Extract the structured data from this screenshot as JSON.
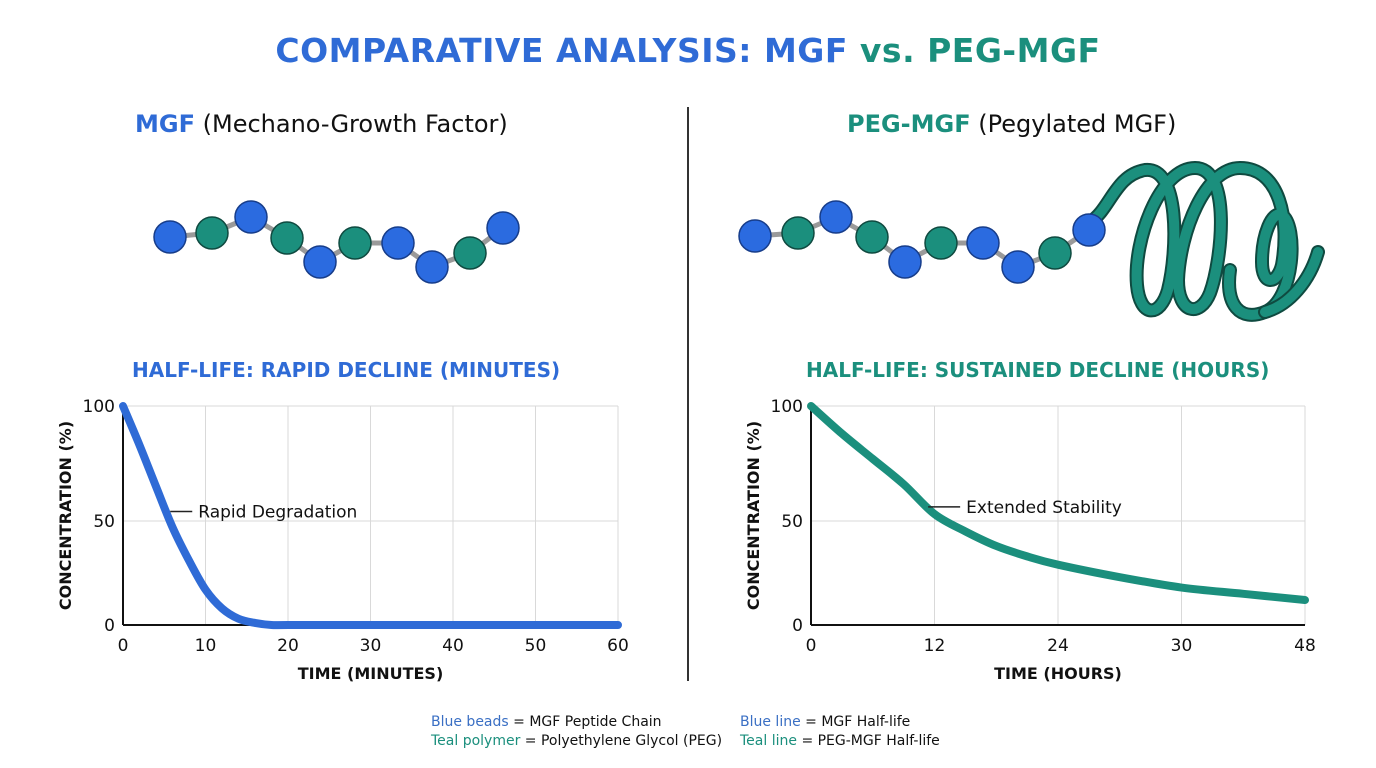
{
  "title": {
    "part1": "COMPARATIVE ANALYSIS: MGF",
    "part2": "vs. PEG-MGF",
    "color1": "#2f6bd6",
    "color2": "#1b8f7d"
  },
  "left_panel": {
    "heading_bold": "MGF",
    "heading_rest": "(Mechano-Growth Factor)",
    "molecule": {
      "beads": [
        "blue",
        "teal",
        "blue",
        "teal",
        "blue",
        "teal",
        "blue",
        "blue",
        "teal",
        "blue"
      ]
    }
  },
  "right_panel": {
    "heading_bold": "PEG-MGF",
    "heading_rest": "(Pegylated MGF)",
    "molecule": {
      "beads": [
        "blue",
        "teal",
        "blue",
        "teal",
        "blue",
        "teal",
        "blue",
        "blue",
        "teal",
        "blue"
      ],
      "polymer": "PEG coil"
    }
  },
  "colors": {
    "blue": "#2f6bd6",
    "blue_bead": "#2b6be0",
    "teal": "#1b8f7d",
    "grid": "#d9d9d9",
    "linker": "#9a9a9a"
  },
  "legend": {
    "row1_left_key": "Blue beads",
    "row1_left_val": "= MGF Peptide Chain",
    "row2_left_key": "Teal polymer",
    "row2_left_val": "= Polyethylene Glycol (PEG)",
    "row1_right_key": "Blue line",
    "row1_right_val": "= MGF Half-life",
    "row2_right_key": "Teal line",
    "row2_right_val": "= PEG-MGF Half-life"
  },
  "chart_data": [
    {
      "type": "line",
      "title": "HALF-LIFE: RAPID DECLINE (MINUTES)",
      "xlabel": "TIME (MINUTES)",
      "ylabel": "CONCENTRATION (%)",
      "x_ticks": [
        "0",
        "10",
        "20",
        "30",
        "40",
        "50",
        "60"
      ],
      "x_tick_values": [
        0,
        10,
        20,
        30,
        40,
        50,
        60
      ],
      "y_ticks": [
        "0",
        "50",
        "100"
      ],
      "y_tick_values": [
        0,
        50,
        100
      ],
      "xlim": [
        0,
        60
      ],
      "ylim": [
        0,
        100
      ],
      "grid": true,
      "series": [
        {
          "name": "MGF Half-life",
          "color": "#2f6bd6",
          "x": [
            0,
            2,
            4,
            6,
            8,
            10,
            12,
            14,
            16,
            18,
            20,
            30,
            40,
            50,
            60
          ],
          "y": [
            100,
            83,
            65,
            47,
            31,
            17,
            8,
            3,
            1,
            0,
            0,
            0,
            0,
            0,
            0
          ]
        }
      ],
      "annotations": [
        {
          "text": "Rapid Degradation",
          "x": 5,
          "y": 55
        }
      ]
    },
    {
      "type": "line",
      "title": "HALF-LIFE: SUSTAINED DECLINE (HOURS)",
      "xlabel": "TIME (HOURS)",
      "ylabel": "CONCENTRATION (%)",
      "x_ticks": [
        "0",
        "12",
        "24",
        "30",
        "48"
      ],
      "x_tick_positions": [
        0,
        1,
        2,
        3,
        4
      ],
      "y_ticks": [
        "0",
        "50",
        "100"
      ],
      "y_tick_values": [
        0,
        50,
        100
      ],
      "ylim": [
        0,
        100
      ],
      "grid": true,
      "series": [
        {
          "name": "PEG-MGF Half-life",
          "color": "#1b8f7d",
          "x_tick_pos": [
            0,
            0.25,
            0.5,
            0.75,
            1,
            1.25,
            1.5,
            1.75,
            2,
            2.5,
            3,
            3.5,
            4
          ],
          "y": [
            100,
            88,
            77,
            66,
            53,
            45,
            38,
            33,
            29,
            23,
            18,
            15,
            12
          ]
        }
      ],
      "annotations": [
        {
          "text": "Extended Stability",
          "x_tick_pos": 0.9,
          "y": 57
        }
      ]
    }
  ]
}
